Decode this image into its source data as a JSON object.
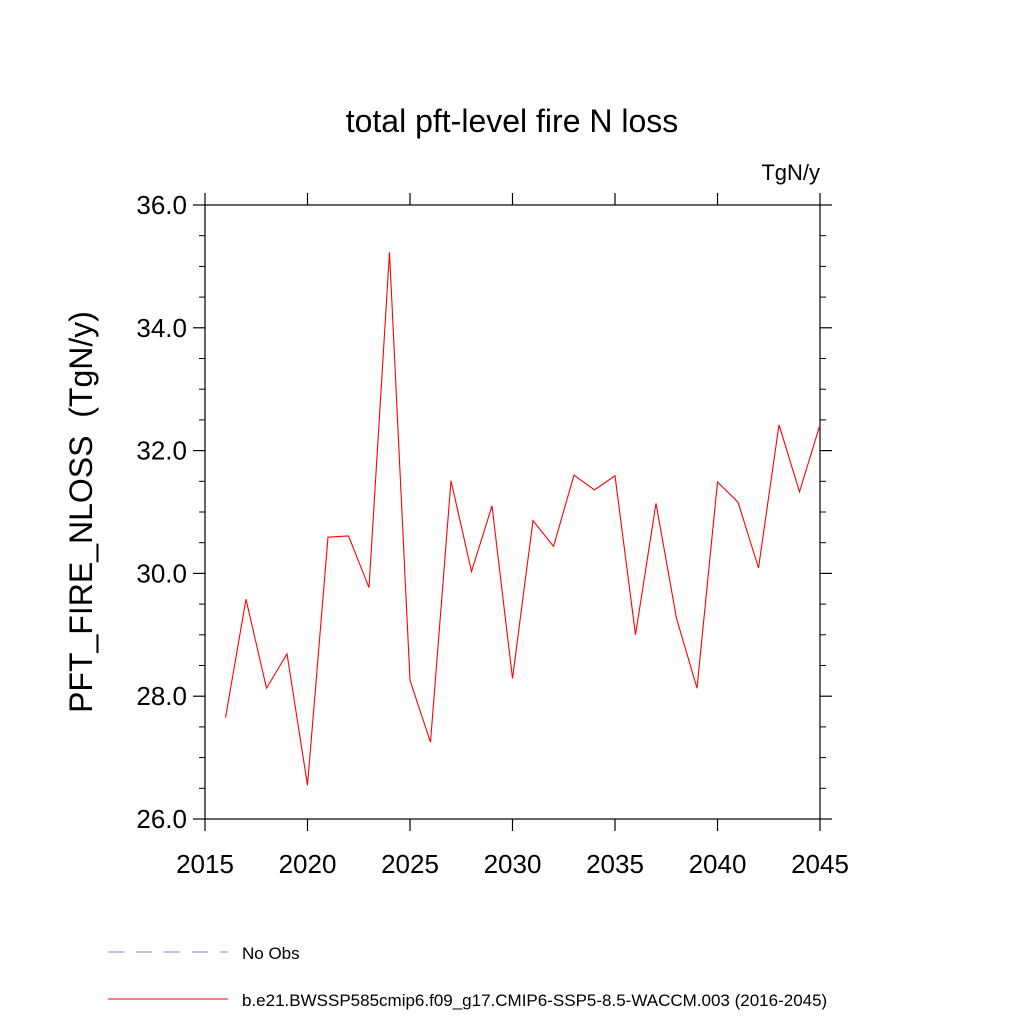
{
  "chart_data": {
    "type": "line",
    "title": "total pft-level fire N loss",
    "units": "TgN/y",
    "ylabel": "PFT_FIRE_NLOSS  (TgN/y)",
    "xlabel": "",
    "xlim": [
      2015,
      2045
    ],
    "ylim": [
      26.0,
      36.0
    ],
    "x_ticks": [
      2015,
      2020,
      2025,
      2030,
      2035,
      2040,
      2045
    ],
    "x_tick_labels": [
      "2015",
      "2020",
      "2025",
      "2030",
      "2035",
      "2040",
      "2045"
    ],
    "y_ticks": [
      26,
      28,
      30,
      32,
      34,
      36
    ],
    "y_tick_labels": [
      "26.0",
      "28.0",
      "30.0",
      "32.0",
      "34.0",
      "36.0"
    ],
    "grid": false,
    "series": [
      {
        "name": "b.e21.BWSSP585cmip6.f09_g17.CMIP6-SSP5-8.5-WACCM.003 (2016-2045)",
        "color": "#ff0000",
        "x": [
          2016,
          2017,
          2018,
          2019,
          2020,
          2021,
          2022,
          2023,
          2024,
          2025,
          2026,
          2027,
          2028,
          2029,
          2030,
          2031,
          2032,
          2033,
          2034,
          2035,
          2036,
          2037,
          2038,
          2039,
          2040,
          2041,
          2042,
          2043,
          2044,
          2045
        ],
        "values": [
          27.65,
          29.58,
          28.13,
          28.69,
          26.55,
          30.59,
          30.61,
          29.77,
          35.23,
          28.26,
          27.25,
          31.51,
          30.03,
          31.1,
          28.29,
          30.86,
          30.44,
          31.6,
          31.36,
          31.59,
          29.0,
          31.14,
          29.27,
          28.13,
          31.49,
          31.16,
          30.09,
          32.42,
          31.33,
          32.42
        ]
      }
    ],
    "legend": {
      "placement": "bottom-left",
      "entries": [
        {
          "label": "No Obs",
          "style": "dashed",
          "color": "#8080c0"
        },
        {
          "label": "b.e21.BWSSP585cmip6.f09_g17.CMIP6-SSP5-8.5-WACCM.003 (2016-2045)",
          "style": "solid",
          "color": "#ff0000"
        }
      ]
    }
  }
}
